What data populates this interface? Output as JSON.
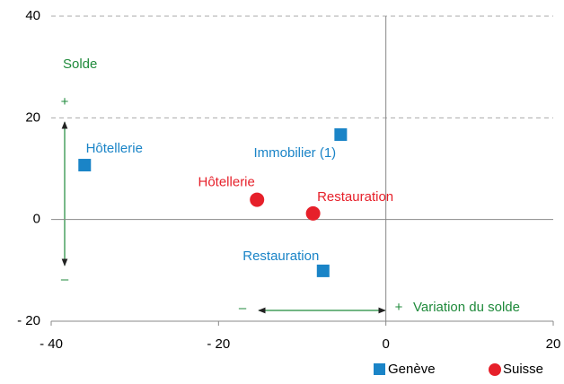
{
  "chart_data": {
    "type": "scatter",
    "xlim": [
      -40,
      20
    ],
    "xticks": [
      {
        "value": -40,
        "label": "- 40"
      },
      {
        "value": -20,
        "label": "- 20"
      },
      0,
      20
    ],
    "ylim": [
      -20,
      40
    ],
    "yticks": [
      {
        "value": -20,
        "label": "- 20"
      },
      0,
      20,
      40
    ],
    "grid": true,
    "legend": "bottom-right",
    "series": [
      {
        "name": "Genève",
        "color": "#1a84c7",
        "marker": "square",
        "x": [
          -36,
          -5.4,
          -7.5
        ],
        "values": [
          10.7,
          16.7,
          -10.1
        ],
        "labels": [
          "Hôtellerie",
          "Immobilier (1)",
          "Restauration"
        ]
      },
      {
        "name": "Suisse",
        "color": "#e6202a",
        "marker": "circle",
        "x": [
          -15.4,
          -8.7
        ],
        "values": [
          3.9,
          1.2
        ],
        "labels": [
          "Hôtellerie",
          "Restauration"
        ]
      }
    ],
    "annotations": [
      "Solde",
      "+",
      "–",
      "–",
      "+",
      "Variation du solde"
    ]
  }
}
